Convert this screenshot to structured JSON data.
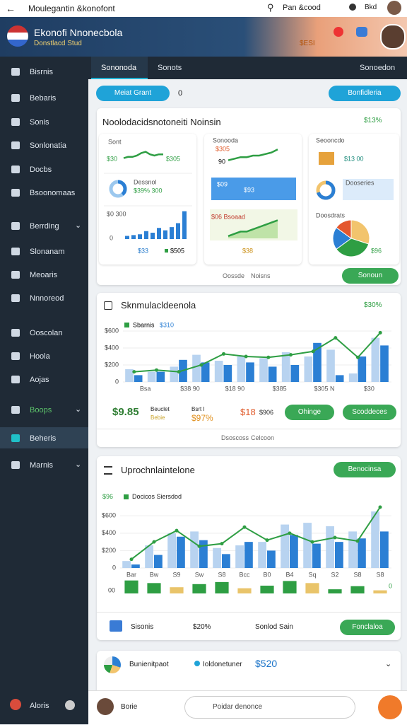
{
  "topbar": {
    "title": "Moulegantin &konofont",
    "search": "Pan &cood",
    "user": "Bkd"
  },
  "header": {
    "title": "Ekonofi Nnonecbola",
    "subtitle": "Donstlacd Stud",
    "badge": "$ESI"
  },
  "sidebar": {
    "items": [
      "Bisrnis",
      "Bebaris",
      "Sonis",
      "Sonlonatia",
      "Docbs",
      "Bsoonomaas",
      "Berrding",
      "Slonanam",
      "Meoaris",
      "Nnnoreod",
      "Ooscolan",
      "Hoola",
      "Aojas",
      "Boops",
      "Beheris",
      "Marnis"
    ],
    "footer": "Aloris"
  },
  "tabs": {
    "items": [
      "Sononoda",
      "Sonots"
    ],
    "right": "Sonoedon"
  },
  "toolbar": {
    "left": "Meiat Grant",
    "count": "0",
    "right": "Bonfidleria"
  },
  "overview": {
    "title": "Noolodacidsnotoneiti Noinsin",
    "badge": "$13%",
    "spark1": {
      "label": "Sont",
      "start": "$30",
      "end": "$305",
      "ylim": [
        0,
        10
      ],
      "values": [
        3,
        4,
        4,
        5,
        7,
        8,
        6,
        5,
        6,
        6
      ]
    },
    "donut1": {
      "label": "Dessnol",
      "text": "$39% 300",
      "value": 39,
      "color": "#2b7fd4"
    },
    "bars1": {
      "top": "$0 300",
      "zero": "0",
      "ylim": [
        0,
        80
      ],
      "values": [
        8,
        10,
        12,
        20,
        16,
        28,
        22,
        30,
        40,
        70
      ],
      "color": "#2b7fd4",
      "total": "$33",
      "legend": "$505"
    },
    "spark2": {
      "label": "Sonooda",
      "top": "$305",
      "left": "90",
      "ylim": [
        0,
        10
      ],
      "values": [
        2,
        3,
        4,
        4,
        5,
        5,
        6,
        7,
        9
      ]
    },
    "box2": {
      "label": "$09",
      "value": "$93"
    },
    "area2": {
      "label": "$06 Bsoaad",
      "ylim": [
        0,
        10
      ],
      "values": [
        1,
        2,
        3,
        3,
        4,
        5,
        6,
        7,
        8
      ],
      "total": "$38"
    },
    "stat3": {
      "label": "Seooncdo",
      "value": "$13 00"
    },
    "donut3": {
      "label": "Dooseries",
      "value": 70,
      "color": "#2b7fd4"
    },
    "pie3": {
      "label": "Doosdrats",
      "values": [
        30,
        35,
        20,
        15
      ],
      "colors": [
        "#f2c46d",
        "#2e9e43",
        "#2b7fd4",
        "#e4572e"
      ],
      "total": "$96"
    },
    "footer": [
      "Oossde",
      "Noisns"
    ],
    "button": "Sonoun"
  },
  "trend": {
    "title": "Sknmulacldeenola",
    "badge": "$30%",
    "chart": {
      "ylim": [
        0,
        600
      ],
      "yticks": [
        0,
        {
          "value": 200,
          "label": "$200"
        },
        {
          "value": 400,
          "label": "$400"
        },
        {
          "value": 600,
          "label": "$600"
        }
      ],
      "xlabels": [
        "Bsa",
        "$38 90",
        "$18 90",
        "$385",
        "$305 N",
        "$30"
      ],
      "series": [
        {
          "color": "#b8d3f0",
          "values": [
            150,
            120,
            180,
            320,
            250,
            300,
            280,
            350,
            300,
            380,
            100,
            520
          ]
        },
        {
          "name": "$310",
          "color": "#2b7fd4",
          "values": [
            80,
            120,
            260,
            230,
            200,
            230,
            180,
            200,
            460,
            80,
            300,
            430
          ]
        },
        {
          "name": "Sbarnis",
          "type": "line",
          "color": "#2e9e43",
          "values": [
            120,
            140,
            120,
            200,
            330,
            300,
            290,
            320,
            360,
            520,
            290,
            580
          ]
        }
      ]
    },
    "stats": [
      "$9.85",
      "Beuclet",
      "Bebie",
      "Bsrt I",
      "$97%",
      "$18",
      "$906"
    ],
    "buttons": [
      "Ohinge",
      "Scoddeces"
    ],
    "footer": [
      "Dsoscoss",
      "Celcoon"
    ]
  },
  "projection": {
    "title": "Uprochnlaintelone",
    "button": "Benocinsa",
    "legend": [
      "$96",
      "Docicos Siersdod"
    ],
    "chart": {
      "ylim": [
        0,
        700
      ],
      "yticks": [
        0,
        {
          "value": 200,
          "label": "$200"
        },
        {
          "value": 400,
          "label": "$400"
        },
        {
          "value": 600,
          "label": "$600"
        }
      ],
      "xlabels": [
        "Bar",
        "Bw",
        "S9",
        "Sw",
        "S8",
        "Bcc",
        "B0",
        "B4",
        "Sq",
        "S2",
        "S8",
        "S8"
      ],
      "series": [
        {
          "color": "#b8d3f0",
          "values": [
            80,
            260,
            400,
            420,
            230,
            260,
            300,
            500,
            520,
            480,
            420,
            650
          ]
        },
        {
          "color": "#2b7fd4",
          "values": [
            40,
            150,
            360,
            320,
            160,
            300,
            200,
            380,
            280,
            300,
            340,
            420
          ]
        },
        {
          "type": "line",
          "color": "#2e9e43",
          "values": [
            100,
            300,
            430,
            250,
            280,
            470,
            320,
            400,
            300,
            350,
            310,
            700
          ]
        }
      ],
      "volume": {
        "ylim": [
          0,
          30
        ],
        "color": "#2e9e43",
        "values": [
          25,
          20,
          12,
          18,
          22,
          10,
          15,
          24,
          20,
          8,
          14,
          6
        ],
        "zero": "00",
        "end": "0"
      }
    },
    "footer": [
      "Sisonis",
      "$20%",
      "Sonlod Sain"
    ],
    "button2": "Fonclaloa"
  },
  "partial": {
    "items": [
      "Bunienitpaot",
      "Ioldonetuner",
      "$520"
    ]
  },
  "bottombar": {
    "user": "Borie",
    "search": "Poidar denonce"
  }
}
